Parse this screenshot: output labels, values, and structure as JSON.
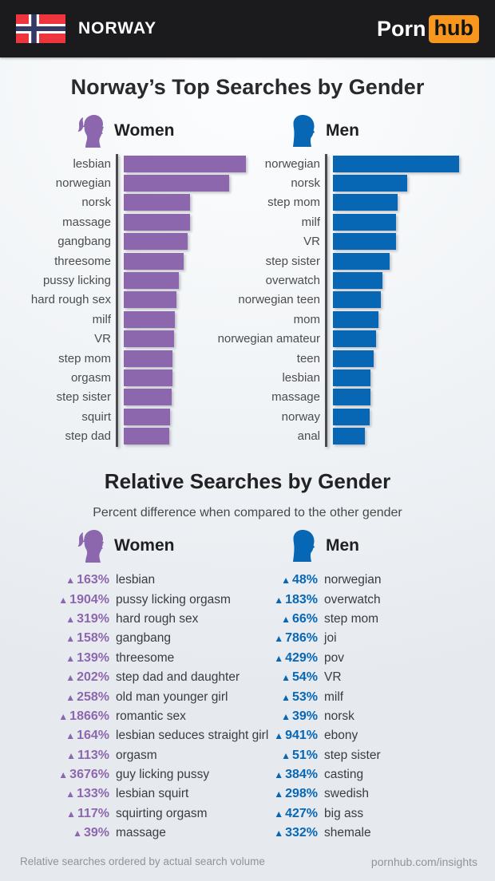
{
  "header": {
    "country": "NORWAY",
    "brand": {
      "porn": "Porn",
      "hub": "hub"
    }
  },
  "top_section": {
    "title": "Norway’s Top Searches by Gender",
    "women_label": "Women",
    "men_label": "Men"
  },
  "relative_section": {
    "title": "Relative Searches by Gender",
    "subtitle": "Percent difference when compared to the other gender",
    "women_label": "Women",
    "men_label": "Men"
  },
  "footer": {
    "left": "Relative searches ordered by actual search volume",
    "right": "pornhub.com/insights"
  },
  "ui": {
    "up_triangle": "▲"
  },
  "colors": {
    "women_purple": "#8d67ae",
    "men_blue": "#0767b5",
    "header_bg": "#1b1b1d",
    "logo_orange": "#f7971d",
    "flag_red": "#ee343d",
    "flag_navy": "#343a66"
  },
  "chart_data": [
    {
      "type": "bar",
      "orientation": "horizontal",
      "group": "women",
      "title": "Norway’s Top Searches by Gender — Women",
      "color": "#8d67ae",
      "categories": [
        "lesbian",
        "norwegian",
        "norsk",
        "massage",
        "gangbang",
        "threesome",
        "pussy licking",
        "hard rough sex",
        "milf",
        "VR",
        "step mom",
        "orgasm",
        "step sister",
        "squirt",
        "step dad"
      ],
      "values": [
        100,
        84,
        53,
        53,
        51,
        48,
        44,
        42,
        41,
        40,
        39,
        39,
        38,
        37,
        36
      ],
      "value_note": "relative bar length, longest bar = 100; no numeric axis shown in image",
      "xlabel": "",
      "ylabel": "",
      "grid": false,
      "legend": false
    },
    {
      "type": "bar",
      "orientation": "horizontal",
      "group": "men",
      "title": "Norway’s Top Searches by Gender — Men",
      "color": "#0767b5",
      "categories": [
        "norwegian",
        "norsk",
        "step mom",
        "milf",
        "VR",
        "step sister",
        "overwatch",
        "norwegian teen",
        "mom",
        "norwegian amateur",
        "teen",
        "lesbian",
        "massage",
        "norway",
        "anal"
      ],
      "values": [
        100,
        59,
        51,
        50,
        50,
        45,
        39,
        38,
        36,
        34,
        32,
        30,
        30,
        29,
        25
      ],
      "value_note": "relative bar length, longest bar = 100; no numeric axis shown in image",
      "xlabel": "",
      "ylabel": "",
      "grid": false,
      "legend": false
    },
    {
      "type": "table",
      "group": "women",
      "title": "Relative Searches by Gender — Women",
      "color": "#8d67ae",
      "columns": [
        "percent_difference",
        "term"
      ],
      "rows": [
        [
          "163%",
          "lesbian"
        ],
        [
          "1904%",
          "pussy licking orgasm"
        ],
        [
          "319%",
          "hard rough sex"
        ],
        [
          "158%",
          "gangbang"
        ],
        [
          "139%",
          "threesome"
        ],
        [
          "202%",
          "step dad and daughter"
        ],
        [
          "258%",
          "old man younger girl"
        ],
        [
          "1866%",
          "romantic sex"
        ],
        [
          "164%",
          "lesbian seduces straight girl"
        ],
        [
          "113%",
          "orgasm"
        ],
        [
          "3676%",
          "guy licking pussy"
        ],
        [
          "133%",
          "lesbian squirt"
        ],
        [
          "117%",
          "squirting orgasm"
        ],
        [
          "39%",
          "massage"
        ]
      ]
    },
    {
      "type": "table",
      "group": "men",
      "title": "Relative Searches by Gender — Men",
      "color": "#0767b5",
      "columns": [
        "percent_difference",
        "term"
      ],
      "rows": [
        [
          "48%",
          "norwegian"
        ],
        [
          "183%",
          "overwatch"
        ],
        [
          "66%",
          "step mom"
        ],
        [
          "786%",
          "joi"
        ],
        [
          "429%",
          "pov"
        ],
        [
          "54%",
          "VR"
        ],
        [
          "53%",
          "milf"
        ],
        [
          "39%",
          "norsk"
        ],
        [
          "941%",
          "ebony"
        ],
        [
          "51%",
          "step sister"
        ],
        [
          "384%",
          "casting"
        ],
        [
          "298%",
          "swedish"
        ],
        [
          "427%",
          "big ass"
        ],
        [
          "332%",
          "shemale"
        ]
      ]
    }
  ]
}
